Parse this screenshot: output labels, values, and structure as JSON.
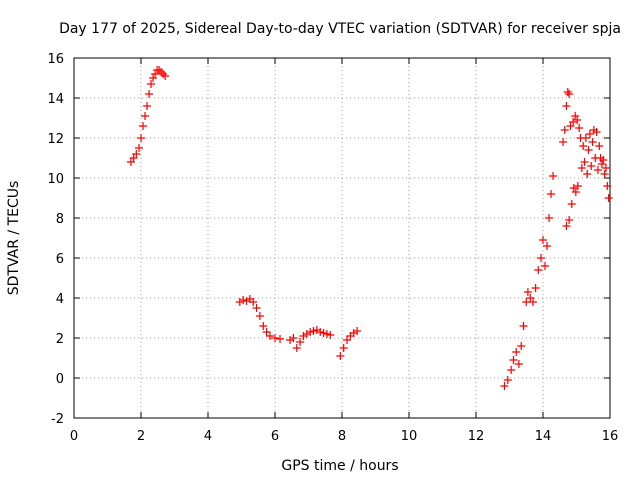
{
  "chart_data": {
    "type": "scatter",
    "title": "Day 177 of 2025, Sidereal Day-to-day VTEC variation (SDTVAR) for receiver spja",
    "xlabel": "GPS time / hours",
    "ylabel": "SDTVAR / TECUs",
    "xlim": [
      0,
      16
    ],
    "ylim": [
      -2,
      16
    ],
    "xticks": [
      0,
      2,
      4,
      6,
      8,
      10,
      12,
      14,
      16
    ],
    "yticks": [
      -2,
      0,
      2,
      4,
      6,
      8,
      10,
      12,
      14,
      16
    ],
    "grid": true,
    "marker": "plus",
    "color": "#ff0000",
    "series": [
      {
        "name": "SDTVAR",
        "points": [
          [
            1.7,
            10.8
          ],
          [
            1.78,
            11.0
          ],
          [
            1.86,
            11.2
          ],
          [
            1.94,
            11.5
          ],
          [
            2.0,
            12.0
          ],
          [
            2.06,
            12.6
          ],
          [
            2.12,
            13.1
          ],
          [
            2.18,
            13.6
          ],
          [
            2.24,
            14.2
          ],
          [
            2.3,
            14.7
          ],
          [
            2.36,
            15.0
          ],
          [
            2.42,
            15.2
          ],
          [
            2.48,
            15.4
          ],
          [
            2.54,
            15.4
          ],
          [
            2.6,
            15.3
          ],
          [
            2.66,
            15.2
          ],
          [
            2.72,
            15.1
          ],
          [
            4.95,
            3.8
          ],
          [
            5.05,
            3.9
          ],
          [
            5.15,
            3.85
          ],
          [
            5.25,
            3.95
          ],
          [
            5.35,
            3.8
          ],
          [
            5.45,
            3.5
          ],
          [
            5.55,
            3.1
          ],
          [
            5.65,
            2.6
          ],
          [
            5.75,
            2.3
          ],
          [
            5.85,
            2.1
          ],
          [
            6.0,
            2.0
          ],
          [
            6.15,
            1.95
          ],
          [
            6.45,
            1.9
          ],
          [
            6.55,
            2.0
          ],
          [
            6.65,
            1.5
          ],
          [
            6.75,
            1.8
          ],
          [
            6.85,
            2.1
          ],
          [
            6.95,
            2.2
          ],
          [
            7.05,
            2.3
          ],
          [
            7.15,
            2.35
          ],
          [
            7.25,
            2.4
          ],
          [
            7.35,
            2.3
          ],
          [
            7.45,
            2.25
          ],
          [
            7.55,
            2.2
          ],
          [
            7.65,
            2.15
          ],
          [
            7.95,
            1.1
          ],
          [
            8.05,
            1.5
          ],
          [
            8.15,
            1.9
          ],
          [
            8.25,
            2.1
          ],
          [
            8.35,
            2.25
          ],
          [
            8.45,
            2.35
          ],
          [
            12.85,
            -0.4
          ],
          [
            12.95,
            -0.1
          ],
          [
            13.05,
            0.4
          ],
          [
            13.12,
            0.9
          ],
          [
            13.2,
            1.3
          ],
          [
            13.28,
            0.7
          ],
          [
            13.35,
            1.6
          ],
          [
            13.42,
            2.6
          ],
          [
            13.5,
            3.8
          ],
          [
            13.55,
            4.3
          ],
          [
            13.62,
            4.0
          ],
          [
            13.7,
            3.8
          ],
          [
            13.78,
            4.5
          ],
          [
            13.86,
            5.4
          ],
          [
            13.94,
            6.0
          ],
          [
            14.0,
            6.9
          ],
          [
            14.06,
            5.6
          ],
          [
            14.12,
            6.6
          ],
          [
            14.18,
            8.0
          ],
          [
            14.24,
            9.2
          ],
          [
            14.3,
            10.1
          ],
          [
            14.6,
            11.8
          ],
          [
            14.65,
            12.4
          ],
          [
            14.7,
            13.6
          ],
          [
            14.74,
            14.3
          ],
          [
            14.78,
            14.2
          ],
          [
            14.82,
            12.6
          ],
          [
            14.7,
            7.6
          ],
          [
            14.78,
            7.9
          ],
          [
            14.86,
            8.7
          ],
          [
            14.92,
            9.5
          ],
          [
            14.98,
            9.3
          ],
          [
            15.04,
            9.6
          ],
          [
            14.9,
            12.8
          ],
          [
            14.96,
            13.1
          ],
          [
            15.02,
            12.9
          ],
          [
            15.08,
            12.5
          ],
          [
            15.12,
            12.0
          ],
          [
            15.16,
            10.5
          ],
          [
            15.2,
            11.6
          ],
          [
            15.24,
            10.8
          ],
          [
            15.28,
            12.0
          ],
          [
            15.32,
            10.2
          ],
          [
            15.36,
            11.4
          ],
          [
            15.4,
            12.2
          ],
          [
            15.44,
            10.6
          ],
          [
            15.48,
            11.8
          ],
          [
            15.52,
            12.4
          ],
          [
            15.56,
            11.0
          ],
          [
            15.6,
            12.3
          ],
          [
            15.64,
            10.4
          ],
          [
            15.68,
            11.6
          ],
          [
            15.72,
            11.0
          ],
          [
            15.76,
            10.7
          ],
          [
            15.8,
            10.9
          ],
          [
            15.84,
            10.2
          ],
          [
            15.88,
            10.5
          ],
          [
            15.92,
            9.6
          ],
          [
            15.96,
            9.0
          ]
        ]
      }
    ]
  }
}
